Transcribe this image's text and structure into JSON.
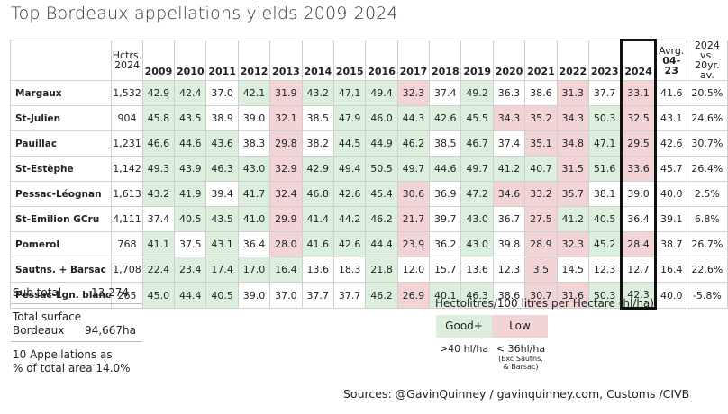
{
  "title": "Top Bordeaux appellations yields 2009-2024",
  "header": {
    "hctrs_line1": "Hctrs.",
    "hctrs_line2": "2024",
    "years": [
      "2009",
      "2010",
      "2011",
      "2012",
      "2013",
      "2014",
      "2015",
      "2016",
      "2017",
      "2018",
      "2019",
      "2020",
      "2021",
      "2022",
      "2023",
      "2024"
    ],
    "avg_line1": "Avrg.",
    "avg_line2": "04-23",
    "vs_line1": "2024 vs.",
    "vs_line2": "20yr. av."
  },
  "chart_data": {
    "type": "table",
    "title": "Top Bordeaux appellations yields 2009-2024",
    "columns": [
      "Hctrs. 2024",
      "2009",
      "2010",
      "2011",
      "2012",
      "2013",
      "2014",
      "2015",
      "2016",
      "2017",
      "2018",
      "2019",
      "2020",
      "2021",
      "2022",
      "2023",
      "2024",
      "Avrg. 04-23",
      "2024 vs. 20yr. av."
    ],
    "rows": [
      {
        "name": "Margaux",
        "hectares": "1,532",
        "values": [
          "42.9",
          "42.4",
          "37.0",
          "42.1",
          "31.9",
          "43.2",
          "47.1",
          "49.4",
          "32.3",
          "37.4",
          "49.2",
          "36.3",
          "38.6",
          "31.3",
          "37.7",
          "33.1"
        ],
        "avg": "41.6",
        "vs": "20.5%"
      },
      {
        "name": "St-Julien",
        "hectares": "904",
        "values": [
          "45.8",
          "43.5",
          "38.9",
          "39.0",
          "32.1",
          "38.5",
          "47.9",
          "46.0",
          "44.3",
          "42.6",
          "45.5",
          "34.3",
          "35.2",
          "34.3",
          "50.3",
          "32.5"
        ],
        "avg": "43.1",
        "vs": "24.6%"
      },
      {
        "name": "Pauillac",
        "hectares": "1,231",
        "values": [
          "46.6",
          "44.6",
          "43.6",
          "38.3",
          "29.8",
          "38.2",
          "44.5",
          "44.9",
          "46.2",
          "38.5",
          "46.7",
          "37.4",
          "35.1",
          "34.8",
          "47.1",
          "29.5"
        ],
        "avg": "42.6",
        "vs": "30.7%"
      },
      {
        "name": "St-Estèphe",
        "hectares": "1,142",
        "values": [
          "49.3",
          "43.9",
          "46.3",
          "43.0",
          "32.9",
          "42.9",
          "49.4",
          "50.5",
          "49.7",
          "44.6",
          "49.7",
          "41.2",
          "40.7",
          "31.5",
          "51.6",
          "33.6"
        ],
        "avg": "45.7",
        "vs": "26.4%"
      },
      {
        "name": "Pessac-Léognan",
        "hectares": "1,613",
        "values": [
          "43.2",
          "41.9",
          "39.4",
          "41.7",
          "32.4",
          "46.8",
          "42.6",
          "45.4",
          "30.6",
          "36.9",
          "47.2",
          "34.6",
          "33.2",
          "35.7",
          "38.1",
          "39.0"
        ],
        "avg": "40.0",
        "vs": "2.5%"
      },
      {
        "name": "St-Emilion GCru",
        "hectares": "4,111",
        "values": [
          "37.4",
          "40.5",
          "43.5",
          "41.0",
          "29.9",
          "41.4",
          "44.2",
          "46.2",
          "21.7",
          "39.7",
          "43.0",
          "36.7",
          "27.5",
          "41.2",
          "40.5",
          "36.4"
        ],
        "avg": "39.1",
        "vs": "6.8%"
      },
      {
        "name": "Pomerol",
        "hectares": "768",
        "values": [
          "41.1",
          "37.5",
          "43.1",
          "36.4",
          "28.0",
          "41.6",
          "42.6",
          "44.4",
          "23.9",
          "36.2",
          "43.0",
          "39.8",
          "28.9",
          "32.3",
          "45.2",
          "28.4"
        ],
        "avg": "38.7",
        "vs": "26.7%"
      },
      {
        "name": "Sautns. + Barsac",
        "hectares": "1,708",
        "values": [
          "22.4",
          "23.4",
          "17.4",
          "17.0",
          "16.4",
          "13.6",
          "18.3",
          "21.8",
          "12.0",
          "15.7",
          "13.6",
          "12.3",
          "3.5",
          "14.5",
          "12.3",
          "12.7"
        ],
        "avg": "16.4",
        "vs": "22.6%"
      },
      {
        "name": "Pessac-Lgn. blanc",
        "hectares": "265",
        "values": [
          "45.0",
          "44.4",
          "40.5",
          "39.0",
          "37.0",
          "37.7",
          "37.7",
          "46.2",
          "26.9",
          "40.1",
          "46.3",
          "38.6",
          "30.7",
          "31.6",
          "50.3",
          "42.3"
        ],
        "avg": "40.0",
        "vs": "-5.8%"
      }
    ],
    "cell_status": [
      [
        "g",
        "g",
        "",
        "g",
        "l",
        "g",
        "g",
        "g",
        "l",
        "",
        "g",
        "",
        "",
        "l",
        "",
        "l"
      ],
      [
        "g",
        "g",
        "",
        "",
        "l",
        "",
        "g",
        "g",
        "g",
        "g",
        "g",
        "l",
        "l",
        "l",
        "g",
        "l"
      ],
      [
        "g",
        "g",
        "g",
        "",
        "l",
        "",
        "g",
        "g",
        "g",
        "",
        "g",
        "",
        "l",
        "l",
        "g",
        "l"
      ],
      [
        "g",
        "g",
        "g",
        "g",
        "l",
        "g",
        "g",
        "g",
        "g",
        "g",
        "g",
        "g",
        "g",
        "l",
        "g",
        "l"
      ],
      [
        "g",
        "g",
        "",
        "g",
        "l",
        "g",
        "g",
        "g",
        "l",
        "",
        "g",
        "l",
        "l",
        "l",
        "",
        ""
      ],
      [
        "",
        "g",
        "g",
        "g",
        "l",
        "g",
        "g",
        "g",
        "l",
        "",
        "g",
        "",
        "l",
        "g",
        "g",
        ""
      ],
      [
        "g",
        "",
        "g",
        "",
        "l",
        "g",
        "g",
        "g",
        "l",
        "",
        "g",
        "",
        "l",
        "l",
        "g",
        "l"
      ],
      [
        "g",
        "g",
        "g",
        "g",
        "g",
        "",
        "",
        "g",
        "",
        "",
        "",
        "",
        "l",
        "",
        "",
        ""
      ],
      [
        "g",
        "g",
        "g",
        "",
        "",
        "",
        "",
        "g",
        "l",
        "g",
        "g",
        "",
        "l",
        "l",
        "g",
        "g"
      ]
    ],
    "status_colors": {
      "good": "#dcefdc",
      "low": "#f2d3d6"
    },
    "highlighted_column": "2024"
  },
  "summary": {
    "subtotal_label": "Sub total",
    "subtotal_value": "13,274",
    "total_line1": "Total surface",
    "total_label": "Bordeaux",
    "total_value": "94,667ha",
    "share_line1": "10 Appellations as",
    "share_line2": "% of total area 14.0%"
  },
  "legend": {
    "title": "Hectolitres/100 litres per Hectare (hl/ha)",
    "good_label": "Good+",
    "good_desc": ">40 hl/ha",
    "low_label": "Low",
    "low_desc": "< 36hl/ha",
    "low_note1": "(Exc Sautns.",
    "low_note2": "& Barsac)"
  },
  "source": "Sources: @GavinQuinney / gavinquinney.com, Customs /CIVB"
}
